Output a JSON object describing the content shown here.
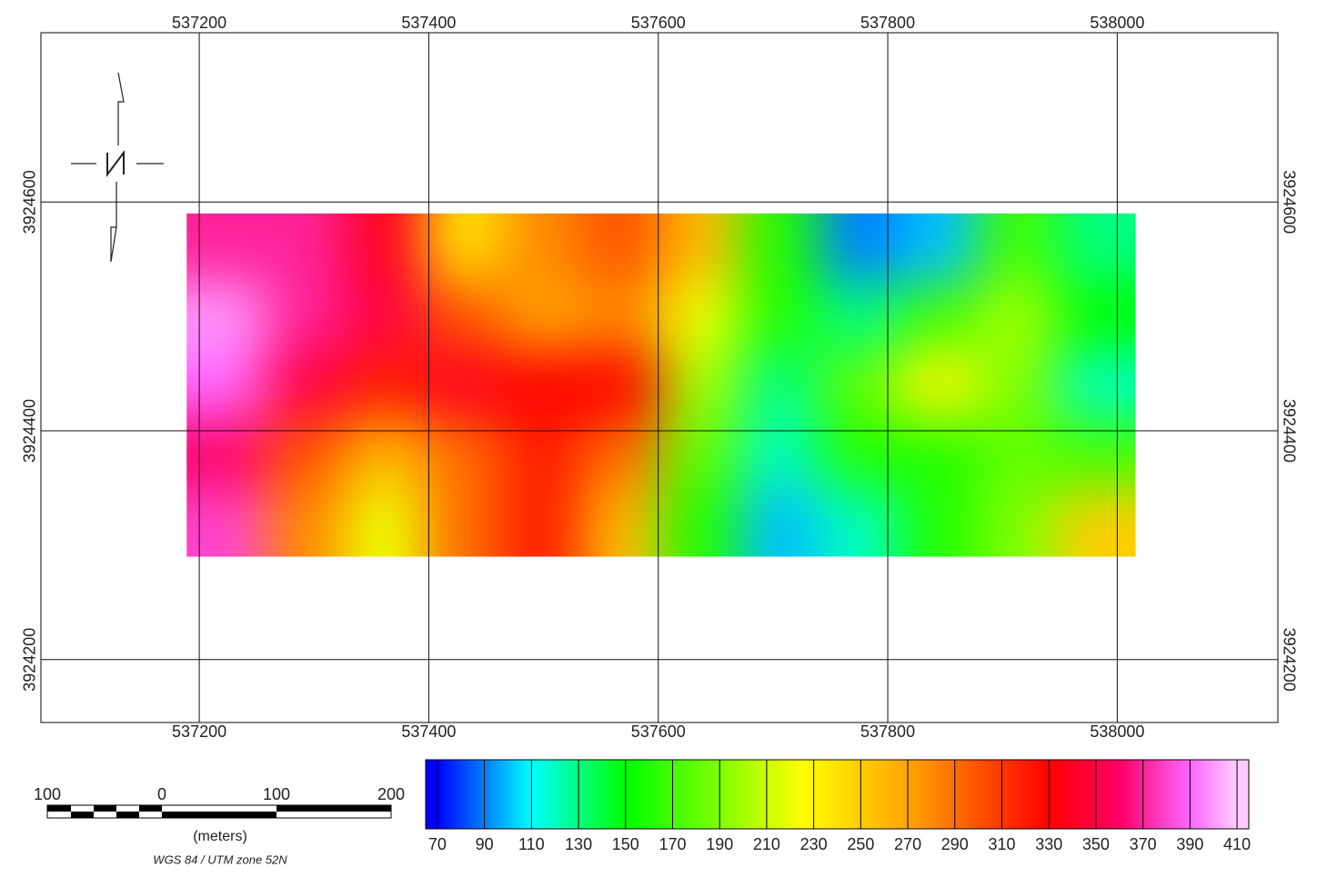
{
  "map": {
    "xlim": [
      537062,
      538140
    ],
    "ylim": [
      3924145,
      3924748
    ],
    "xticks": [
      537200,
      537400,
      537600,
      537800,
      538000
    ],
    "yticks": [
      3924200,
      3924400,
      3924600
    ],
    "extent": {
      "x": [
        537189,
        538016
      ],
      "y": [
        3924290,
        3924590
      ]
    },
    "grid": [
      [
        370,
        370,
        340,
        240,
        280,
        300,
        260,
        160,
        90,
        100,
        170,
        130
      ],
      [
        400,
        370,
        350,
        300,
        270,
        280,
        220,
        160,
        130,
        170,
        200,
        150
      ],
      [
        390,
        350,
        320,
        340,
        330,
        330,
        200,
        130,
        180,
        230,
        190,
        120
      ],
      [
        360,
        300,
        260,
        290,
        320,
        290,
        180,
        120,
        160,
        160,
        180,
        170
      ],
      [
        380,
        280,
        220,
        290,
        320,
        260,
        160,
        100,
        120,
        160,
        190,
        250
      ]
    ]
  },
  "colorbar": {
    "lim": [
      65,
      415
    ],
    "ticks": [
      70,
      90,
      110,
      130,
      150,
      170,
      190,
      210,
      230,
      250,
      270,
      290,
      310,
      330,
      350,
      370,
      390,
      410
    ],
    "colormap": [
      [
        70,
        "#0000ff"
      ],
      [
        110,
        "#00ffff"
      ],
      [
        150,
        "#00ff00"
      ],
      [
        190,
        "#80ff00"
      ],
      [
        225,
        "#ffff00"
      ],
      [
        270,
        "#ffa500"
      ],
      [
        330,
        "#ff0000"
      ],
      [
        360,
        "#ff0066"
      ],
      [
        390,
        "#ff66ff"
      ],
      [
        410,
        "#ffccff"
      ]
    ]
  },
  "scale_bar": {
    "labels": [
      "100",
      "0",
      "100",
      "200"
    ],
    "unit": "(meters)",
    "projection": "WGS 84 / UTM zone 52N"
  }
}
